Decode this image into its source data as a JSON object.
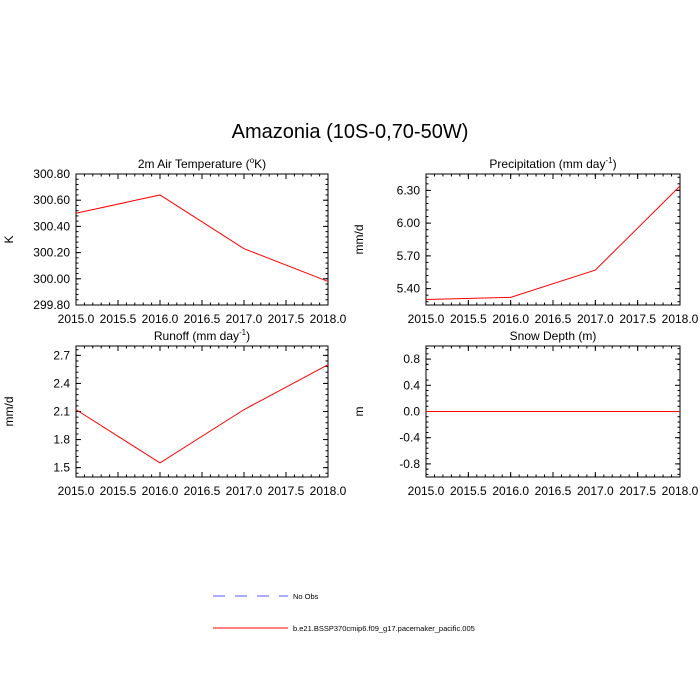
{
  "main_title": "Amazonia (10S-0,70-50W)",
  "chart_data": [
    {
      "type": "line",
      "title_main": "2m Air Temperature (",
      "title_sup": "o",
      "title_tail": "K)",
      "ylabel": "K",
      "x": [
        2015.0,
        2016.0,
        2017.0,
        2018.0
      ],
      "xlim": [
        2015.0,
        2018.0
      ],
      "xticks": [
        "2015.0",
        "2015.5",
        "2016.0",
        "2016.5",
        "2017.0",
        "2017.5",
        "2018.0"
      ],
      "ylim": [
        299.8,
        300.8
      ],
      "yticks": [
        "299.80",
        "300.00",
        "300.20",
        "300.40",
        "300.60",
        "300.80"
      ],
      "series": [
        {
          "values": [
            300.5,
            300.64,
            300.23,
            299.98
          ],
          "color": "#ff0000"
        }
      ]
    },
    {
      "type": "line",
      "title_main": "Precipitation (mm day",
      "title_sup": "-1",
      "title_tail": ")",
      "ylabel": "mm/d",
      "x": [
        2015.0,
        2016.0,
        2017.0,
        2018.0
      ],
      "xlim": [
        2015.0,
        2018.0
      ],
      "xticks": [
        "2015.0",
        "2015.5",
        "2016.0",
        "2016.5",
        "2017.0",
        "2017.5",
        "2018.0"
      ],
      "ylim": [
        5.25,
        6.45
      ],
      "yticks": [
        "5.40",
        "5.70",
        "6.00",
        "6.30"
      ],
      "series": [
        {
          "values": [
            5.3,
            5.32,
            5.57,
            6.34
          ],
          "color": "#ff0000"
        }
      ]
    },
    {
      "type": "line",
      "title_main": "Runoff (mm day",
      "title_sup": "-1",
      "title_tail": ")",
      "ylabel": "mm/d",
      "x": [
        2015.0,
        2016.0,
        2017.0,
        2018.0
      ],
      "xlim": [
        2015.0,
        2018.0
      ],
      "xticks": [
        "2015.0",
        "2015.5",
        "2016.0",
        "2016.5",
        "2017.0",
        "2017.5",
        "2018.0"
      ],
      "ylim": [
        1.4,
        2.8
      ],
      "yticks": [
        "1.5",
        "1.8",
        "2.1",
        "2.4",
        "2.7"
      ],
      "series": [
        {
          "values": [
            2.12,
            1.55,
            2.12,
            2.6
          ],
          "color": "#ff0000"
        }
      ]
    },
    {
      "type": "line",
      "title_main": "Snow Depth (m)",
      "title_sup": "",
      "title_tail": "",
      "ylabel": "m",
      "x": [
        2015.0,
        2016.0,
        2017.0,
        2018.0
      ],
      "xlim": [
        2015.0,
        2018.0
      ],
      "xticks": [
        "2015.0",
        "2015.5",
        "2016.0",
        "2016.5",
        "2017.0",
        "2017.5",
        "2018.0"
      ],
      "ylim": [
        -1.0,
        1.0
      ],
      "yticks": [
        "-0.8",
        "-0.4",
        "0.0",
        "0.4",
        "0.8"
      ],
      "series": [
        {
          "values": [
            0.0,
            0.0,
            0.0,
            0.0
          ],
          "color": "#ff0000"
        }
      ]
    }
  ],
  "legend": [
    {
      "label": "No Obs",
      "color": "#5a5aff",
      "style": "dashed"
    },
    {
      "label": "b.e21.BSSP370cmip6.f09_g17.pacemaker_pacific.005",
      "color": "#ff0000",
      "style": "solid"
    }
  ]
}
